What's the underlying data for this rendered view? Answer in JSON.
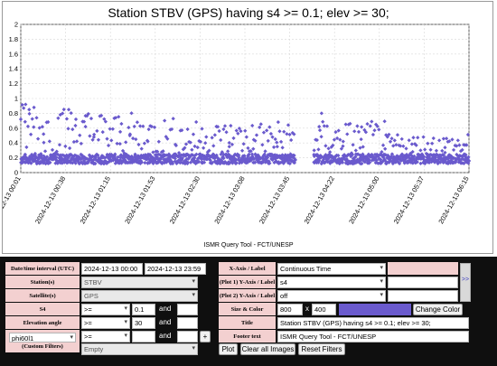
{
  "chart": {
    "title": "Station STBV (GPS) having s4 >= 0.1; elev >= 30;",
    "footer": "ISMR Query Tool - FCT/UNESP",
    "point_color": "#6a5acd"
  },
  "chart_data": {
    "type": "scatter",
    "title": "Station STBV (GPS) having s4 >= 0.1; elev >= 30;",
    "xlabel": "",
    "ylabel": "",
    "ylim": [
      0,
      2
    ],
    "yticks": [
      "0",
      "0.2",
      "0.4",
      "0.6",
      "0.8",
      "1",
      "1.2",
      "1.4",
      "1.6",
      "1.8",
      "2"
    ],
    "xticks": [
      "2024-12-13 00:01",
      "2024-12-13 00:38",
      "2024-12-13 01:15",
      "2024-12-13 01:53",
      "2024-12-13 02:30",
      "2024-12-13 03:08",
      "2024-12-13 03:45",
      "2024-12-13 04:22",
      "2024-12-13 05:00",
      "2024-12-13 05:37",
      "2024-12-13 06:15"
    ],
    "grid": true,
    "series": [
      {
        "color": "#6a5acd",
        "time_start": "2024-12-13 00:01",
        "time_end": "2024-12-13 06:15",
        "data_gap": [
          "2024-12-13 03:50",
          "2024-12-13 04:05"
        ],
        "points_sample": [
          {
            "x": "2024-12-13 00:05",
            "y": 0.92
          },
          {
            "x": "2024-12-13 00:08",
            "y": 0.85
          },
          {
            "x": "2024-12-13 00:12",
            "y": 0.88
          },
          {
            "x": "2024-12-13 00:20",
            "y": 0.52
          },
          {
            "x": "2024-12-13 00:34",
            "y": 0.78
          },
          {
            "x": "2024-12-13 00:41",
            "y": 0.85
          },
          {
            "x": "2024-12-13 00:47",
            "y": 0.72
          },
          {
            "x": "2024-12-13 00:55",
            "y": 0.62
          },
          {
            "x": "2024-12-13 01:02",
            "y": 0.48
          },
          {
            "x": "2024-12-13 01:24",
            "y": 0.55
          },
          {
            "x": "2024-12-13 01:32",
            "y": 0.5
          },
          {
            "x": "2024-12-13 01:47",
            "y": 0.42
          },
          {
            "x": "2024-12-13 02:10",
            "y": 0.38
          },
          {
            "x": "2024-12-13 02:35",
            "y": 0.4
          },
          {
            "x": "2024-12-13 02:55",
            "y": 0.35
          },
          {
            "x": "2024-12-13 03:15",
            "y": 0.32
          },
          {
            "x": "2024-12-13 03:35",
            "y": 0.35
          },
          {
            "x": "2024-12-13 04:10",
            "y": 0.62
          },
          {
            "x": "2024-12-13 04:12",
            "y": 0.8
          },
          {
            "x": "2024-12-13 04:30",
            "y": 0.42
          },
          {
            "x": "2024-12-13 04:45",
            "y": 0.45
          },
          {
            "x": "2024-12-13 05:05",
            "y": 0.32
          },
          {
            "x": "2024-12-13 05:28",
            "y": 0.28
          },
          {
            "x": "2024-12-13 05:55",
            "y": 0.27
          },
          {
            "x": "2024-12-13 06:12",
            "y": 0.22
          }
        ],
        "baseline_band": [
          0.12,
          0.25
        ]
      }
    ]
  },
  "form": {
    "left": {
      "rows": [
        {
          "label": "Date/time interval (UTC)",
          "start": "2024-12-13 00:00",
          "end": "2024-12-13 23:59"
        },
        {
          "label": "Station(s)",
          "value": "STBV"
        },
        {
          "label": "Satellite(s)",
          "value": "GPS"
        },
        {
          "label": "S4",
          "op": ">=",
          "value": "0.1",
          "conj": "and"
        },
        {
          "label": "Elevation angle",
          "op": ">=",
          "value": "30",
          "conj": "and"
        },
        {
          "label_line1": "phi60l1",
          "label_line2": "(Custom Filters)",
          "op": ">=",
          "conj": "and",
          "plus": "+",
          "empty": "Empty"
        }
      ]
    },
    "right": {
      "rows": [
        {
          "label": "X-Axis / Label",
          "value": "Continuous Time"
        },
        {
          "label": "(Plot 1) Y-Axis / Label",
          "value": "s4"
        },
        {
          "label": "(Plot 2) Y-Axis / Label",
          "value": "off"
        },
        {
          "label": "Size & Color",
          "w": "800",
          "x": "x",
          "h": "400",
          "color_button": "Change Color"
        },
        {
          "label": "Title",
          "value": "Station STBV (GPS) having s4 >= 0.1; elev >= 30;"
        },
        {
          "label": "Footer text",
          "value": "ISMR Query Tool - FCT/UNESP"
        }
      ],
      "scroll_glyph": ">>"
    },
    "buttons": {
      "plot": "Plot",
      "clear": "Clear all Images",
      "reset": "Reset Filters"
    }
  }
}
